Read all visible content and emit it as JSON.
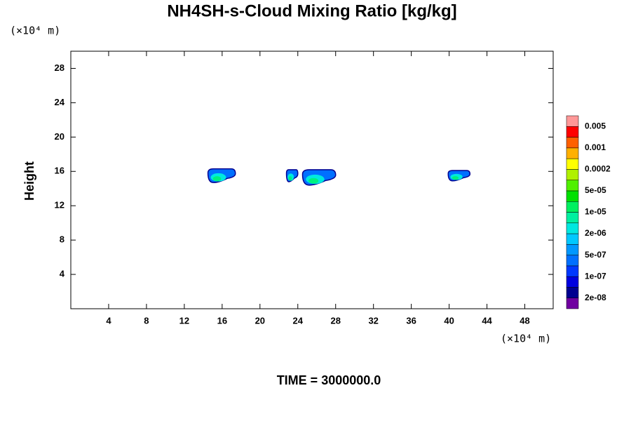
{
  "chart_data": {
    "type": "filled-contour",
    "title": "NH4SH-s-Cloud Mixing Ratio [kg/kg]",
    "y_label": "Height",
    "y_unit": "(×10⁴ m)",
    "x_unit": "(×10⁴ m)",
    "footer": "TIME = 3000000.0",
    "xlim": [
      0,
      51
    ],
    "ylim": [
      0,
      30
    ],
    "xticks": [
      4,
      8,
      12,
      16,
      20,
      24,
      28,
      32,
      36,
      40,
      44,
      48
    ],
    "yticks": [
      4,
      8,
      12,
      16,
      20,
      24,
      28
    ],
    "clouds": [
      {
        "x": [
          14.5,
          17.4
        ],
        "y": [
          14.7,
          16.3
        ]
      },
      {
        "x": [
          22.8,
          24.0
        ],
        "y": [
          14.8,
          16.2
        ]
      },
      {
        "x": [
          24.5,
          28.0
        ],
        "y": [
          14.4,
          16.2
        ]
      },
      {
        "x": [
          39.9,
          42.2
        ],
        "y": [
          14.9,
          16.1
        ]
      }
    ],
    "colorbar": {
      "colors": [
        "#7000a0",
        "#000090",
        "#0000e0",
        "#0038ff",
        "#0070ff",
        "#0098ff",
        "#00c8ff",
        "#00e8e0",
        "#00f0a0",
        "#00f060",
        "#00e000",
        "#50f000",
        "#b0f000",
        "#ffff00",
        "#ffb000",
        "#ff6000",
        "#ff0000",
        "#ff9898"
      ],
      "labels": [
        "2e-08",
        "1e-07",
        "5e-07",
        "2e-06",
        "1e-05",
        "5e-05",
        "0.0002",
        "0.001",
        "0.005"
      ]
    }
  }
}
